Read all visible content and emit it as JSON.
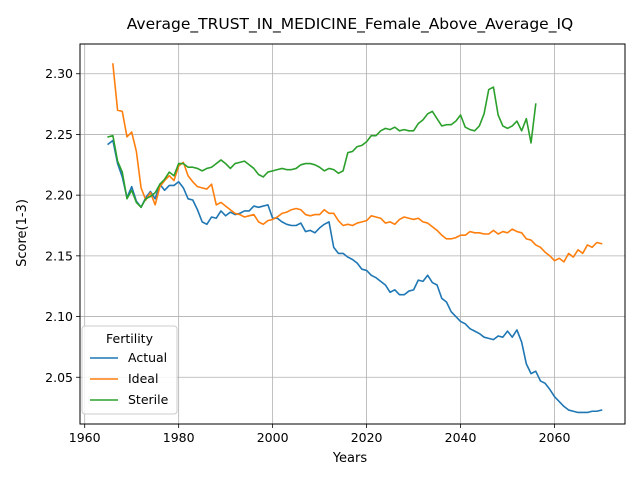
{
  "chart_data": {
    "type": "line",
    "title": "Average_TRUST_IN_MEDICINE_Female_Above_Average_IQ",
    "xlabel": "Years",
    "ylabel": "Score(1-3)",
    "xlim": [
      1959,
      2075
    ],
    "ylim": [
      2.0115,
      2.3245
    ],
    "x_ticks": [
      1960,
      1980,
      2000,
      2020,
      2040,
      2060
    ],
    "x_tick_labels": [
      "1960",
      "1980",
      "2000",
      "2020",
      "2040",
      "2060"
    ],
    "y_ticks": [
      2.05,
      2.1,
      2.15,
      2.2,
      2.25,
      2.3
    ],
    "y_tick_labels": [
      "2.05",
      "2.10",
      "2.15",
      "2.20",
      "2.25",
      "2.30"
    ],
    "grid": true,
    "legend": {
      "title": "Fertility",
      "placement": "lower-left"
    },
    "series": [
      {
        "name": "Actual",
        "color": "#1f77b4",
        "x": [
          1965,
          1966,
          1967,
          1968,
          1969,
          1970,
          1971,
          1972,
          1973,
          1974,
          1975,
          1976,
          1977,
          1978,
          1979,
          1980,
          1981,
          1982,
          1983,
          1984,
          1985,
          1986,
          1987,
          1988,
          1989,
          1990,
          1991,
          1992,
          1993,
          1994,
          1995,
          1996,
          1997,
          1998,
          1999,
          2000,
          2001,
          2002,
          2003,
          2004,
          2005,
          2006,
          2007,
          2008,
          2009,
          2010,
          2011,
          2012,
          2013,
          2014,
          2015,
          2016,
          2017,
          2018,
          2019,
          2020,
          2021,
          2022,
          2023,
          2024,
          2025,
          2026,
          2027,
          2028,
          2029,
          2030,
          2031,
          2032,
          2033,
          2034,
          2035,
          2036,
          2037,
          2038,
          2039,
          2040,
          2041,
          2042,
          2043,
          2044,
          2045,
          2046,
          2047,
          2048,
          2049,
          2050,
          2051,
          2052,
          2053,
          2054,
          2055,
          2056,
          2057,
          2058,
          2059,
          2060,
          2061,
          2062,
          2063,
          2064,
          2065,
          2066,
          2067,
          2068,
          2069,
          2070
        ],
        "values": [
          2.242,
          2.245,
          2.226,
          2.215,
          2.198,
          2.207,
          2.195,
          2.19,
          2.198,
          2.203,
          2.197,
          2.209,
          2.204,
          2.208,
          2.208,
          2.211,
          2.206,
          2.197,
          2.196,
          2.188,
          2.178,
          2.176,
          2.182,
          2.181,
          2.187,
          2.183,
          2.186,
          2.184,
          2.185,
          2.187,
          2.187,
          2.191,
          2.19,
          2.191,
          2.192,
          2.181,
          2.181,
          2.178,
          2.176,
          2.175,
          2.175,
          2.177,
          2.17,
          2.171,
          2.169,
          2.173,
          2.176,
          2.178,
          2.157,
          2.152,
          2.152,
          2.149,
          2.147,
          2.144,
          2.139,
          2.138,
          2.134,
          2.132,
          2.129,
          2.126,
          2.12,
          2.122,
          2.118,
          2.118,
          2.121,
          2.122,
          2.13,
          2.129,
          2.134,
          2.128,
          2.126,
          2.115,
          2.112,
          2.104,
          2.1,
          2.096,
          2.094,
          2.09,
          2.088,
          2.086,
          2.083,
          2.082,
          2.081,
          2.084,
          2.083,
          2.088,
          2.083,
          2.089,
          2.079,
          2.061,
          2.053,
          2.055,
          2.047,
          2.045,
          2.04,
          2.034,
          2.03,
          2.026,
          2.023,
          2.022,
          2.021,
          2.021,
          2.021,
          2.022,
          2.022,
          2.023
        ]
      },
      {
        "name": "Ideal",
        "color": "#ff7f0e",
        "x": [
          1966,
          1967,
          1968,
          1969,
          1970,
          1971,
          1972,
          1973,
          1974,
          1975,
          1976,
          1977,
          1978,
          1979,
          1980,
          1981,
          1982,
          1983,
          1984,
          1985,
          1986,
          1987,
          1988,
          1989,
          1990,
          1991,
          1992,
          1993,
          1994,
          1995,
          1996,
          1997,
          1998,
          1999,
          2000,
          2001,
          2002,
          2003,
          2004,
          2005,
          2006,
          2007,
          2008,
          2009,
          2010,
          2011,
          2012,
          2013,
          2014,
          2015,
          2016,
          2017,
          2018,
          2019,
          2020,
          2021,
          2022,
          2023,
          2024,
          2025,
          2026,
          2027,
          2028,
          2029,
          2030,
          2031,
          2032,
          2033,
          2034,
          2035,
          2036,
          2037,
          2038,
          2039,
          2040,
          2041,
          2042,
          2043,
          2044,
          2045,
          2046,
          2047,
          2048,
          2049,
          2050,
          2051,
          2052,
          2053,
          2054,
          2055,
          2056,
          2057,
          2058,
          2059,
          2060,
          2061,
          2062,
          2063,
          2064,
          2065,
          2066,
          2067,
          2068,
          2069,
          2070
        ],
        "values": [
          2.308,
          2.27,
          2.269,
          2.248,
          2.252,
          2.236,
          2.206,
          2.196,
          2.202,
          2.192,
          2.207,
          2.212,
          2.216,
          2.212,
          2.224,
          2.227,
          2.216,
          2.211,
          2.207,
          2.206,
          2.205,
          2.209,
          2.192,
          2.194,
          2.191,
          2.188,
          2.185,
          2.184,
          2.182,
          2.183,
          2.184,
          2.178,
          2.176,
          2.179,
          2.18,
          2.182,
          2.185,
          2.186,
          2.188,
          2.189,
          2.188,
          2.184,
          2.183,
          2.184,
          2.184,
          2.188,
          2.185,
          2.185,
          2.179,
          2.175,
          2.176,
          2.175,
          2.177,
          2.178,
          2.179,
          2.183,
          2.182,
          2.181,
          2.177,
          2.178,
          2.176,
          2.18,
          2.182,
          2.181,
          2.18,
          2.181,
          2.178,
          2.177,
          2.174,
          2.171,
          2.167,
          2.164,
          2.164,
          2.165,
          2.167,
          2.167,
          2.17,
          2.169,
          2.169,
          2.168,
          2.168,
          2.171,
          2.168,
          2.17,
          2.169,
          2.172,
          2.17,
          2.169,
          2.164,
          2.163,
          2.159,
          2.157,
          2.153,
          2.15,
          2.146,
          2.148,
          2.145,
          2.152,
          2.149,
          2.155,
          2.152,
          2.159,
          2.157,
          2.161,
          2.16
        ]
      },
      {
        "name": "Sterile",
        "color": "#2ca02c",
        "x": [
          1965,
          1966,
          1967,
          1968,
          1969,
          1970,
          1971,
          1972,
          1973,
          1974,
          1975,
          1976,
          1977,
          1978,
          1979,
          1980,
          1981,
          1982,
          1983,
          1984,
          1985,
          1986,
          1987,
          1988,
          1989,
          1990,
          1991,
          1992,
          1993,
          1994,
          1995,
          1996,
          1997,
          1998,
          1999,
          2000,
          2001,
          2002,
          2003,
          2004,
          2005,
          2006,
          2007,
          2008,
          2009,
          2010,
          2011,
          2012,
          2013,
          2014,
          2015,
          2016,
          2017,
          2018,
          2019,
          2020,
          2021,
          2022,
          2023,
          2024,
          2025,
          2026,
          2027,
          2028,
          2029,
          2030,
          2031,
          2032,
          2033,
          2034,
          2035,
          2036,
          2037,
          2038,
          2039,
          2040,
          2041,
          2042,
          2043,
          2044,
          2045,
          2046,
          2047,
          2048,
          2049,
          2050,
          2051,
          2052,
          2053,
          2054,
          2055,
          2056
        ],
        "values": [
          2.248,
          2.249,
          2.228,
          2.219,
          2.197,
          2.204,
          2.194,
          2.19,
          2.197,
          2.199,
          2.202,
          2.209,
          2.213,
          2.219,
          2.216,
          2.226,
          2.226,
          2.223,
          2.223,
          2.222,
          2.22,
          2.222,
          2.223,
          2.226,
          2.229,
          2.226,
          2.222,
          2.226,
          2.227,
          2.228,
          2.225,
          2.222,
          2.217,
          2.215,
          2.219,
          2.22,
          2.221,
          2.222,
          2.221,
          2.221,
          2.222,
          2.225,
          2.226,
          2.226,
          2.225,
          2.223,
          2.22,
          2.222,
          2.221,
          2.218,
          2.22,
          2.235,
          2.236,
          2.24,
          2.241,
          2.244,
          2.249,
          2.249,
          2.253,
          2.255,
          2.254,
          2.256,
          2.253,
          2.254,
          2.253,
          2.253,
          2.259,
          2.262,
          2.267,
          2.269,
          2.263,
          2.257,
          2.258,
          2.258,
          2.261,
          2.266,
          2.256,
          2.254,
          2.253,
          2.257,
          2.267,
          2.287,
          2.289,
          2.266,
          2.257,
          2.255,
          2.257,
          2.261,
          2.253,
          2.263,
          2.243,
          2.275
        ]
      }
    ]
  }
}
